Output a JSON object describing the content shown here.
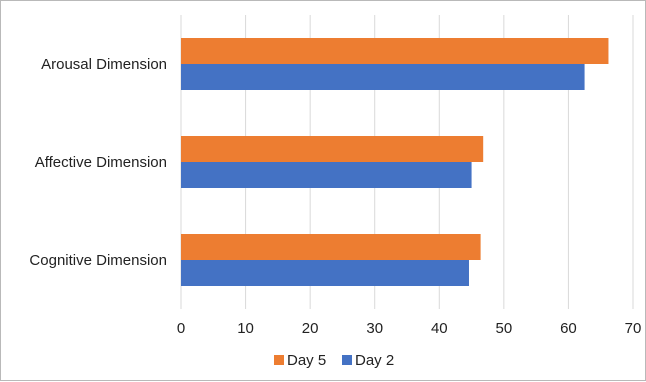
{
  "chart_data": {
    "type": "bar",
    "orientation": "horizontal",
    "categories": [
      "Arousal Dimension",
      "Affective Dimension",
      "Cognitive Dimension"
    ],
    "series": [
      {
        "name": "Day 5",
        "color": "#ED7D31",
        "values": [
          66.2,
          46.8,
          46.4
        ]
      },
      {
        "name": "Day 2",
        "color": "#4472C4",
        "values": [
          62.5,
          45.0,
          44.6
        ]
      }
    ],
    "x_ticks": [
      "0",
      "10",
      "20",
      "30",
      "40",
      "50",
      "60",
      "70"
    ],
    "xlim": [
      0,
      70
    ],
    "grid": true,
    "legend_position": "bottom"
  }
}
